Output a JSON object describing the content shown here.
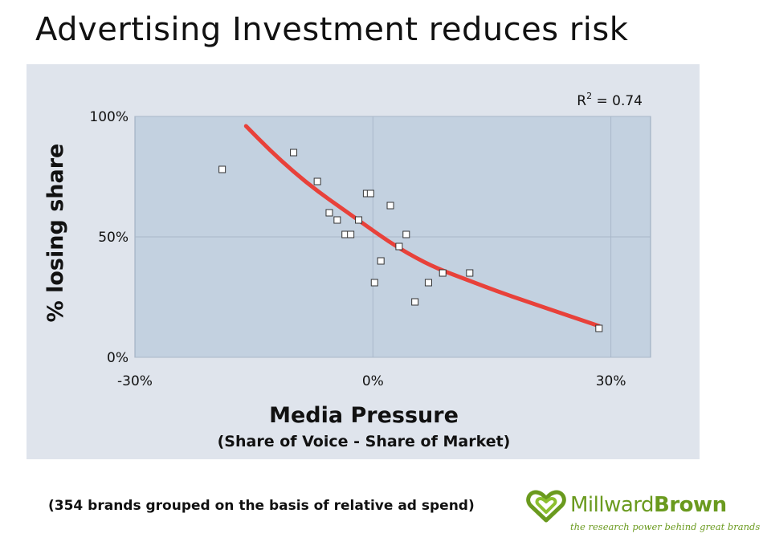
{
  "page": {
    "title": "Advertising Investment reduces risk",
    "footnote": "(354 brands grouped on the basis of relative ad spend)",
    "logo": {
      "name_part1": "Millward",
      "name_part2": "Brown",
      "tagline": "the research power behind great brands"
    }
  },
  "chart_data": {
    "type": "scatter",
    "title": "Advertising Investment reduces risk",
    "xlabel": "Media Pressure",
    "xlabel_sub": "(Share of Voice - Share of Market)",
    "ylabel": "% losing share",
    "xlim": [
      -30,
      35
    ],
    "ylim": [
      0,
      100
    ],
    "x_ticks": [
      -30,
      0,
      30
    ],
    "x_tick_labels": [
      "-30%",
      "0%",
      "30%"
    ],
    "y_ticks": [
      0,
      50,
      100
    ],
    "y_tick_labels": [
      "0%",
      "50%",
      "100%"
    ],
    "grid": true,
    "annotation": "= 0.74",
    "annotation_prefix": "R",
    "annotation_sup": "2",
    "series": [
      {
        "type": "scatter",
        "x": [
          -19,
          -10,
          -7,
          -5.5,
          -4.5,
          -3.5,
          -2.8,
          -1.8,
          -0.8,
          -0.3,
          0.2,
          1,
          2.2,
          3.3,
          4.2,
          5.3,
          7,
          8.8,
          12.2,
          28.5
        ],
        "y": [
          78,
          85,
          73,
          60,
          57,
          51,
          51,
          57,
          68,
          68,
          31,
          40,
          63,
          46,
          51,
          23,
          31,
          35,
          35,
          12
        ]
      },
      {
        "type": "line",
        "color": "#e8413a",
        "x": [
          -16,
          -13,
          -10,
          -7,
          -4,
          -1,
          2,
          5,
          8,
          12,
          16,
          20,
          24,
          28.5
        ],
        "y": [
          96,
          86,
          77,
          69,
          62,
          55,
          48,
          42,
          37,
          32,
          27,
          22.5,
          18,
          13
        ]
      }
    ]
  }
}
